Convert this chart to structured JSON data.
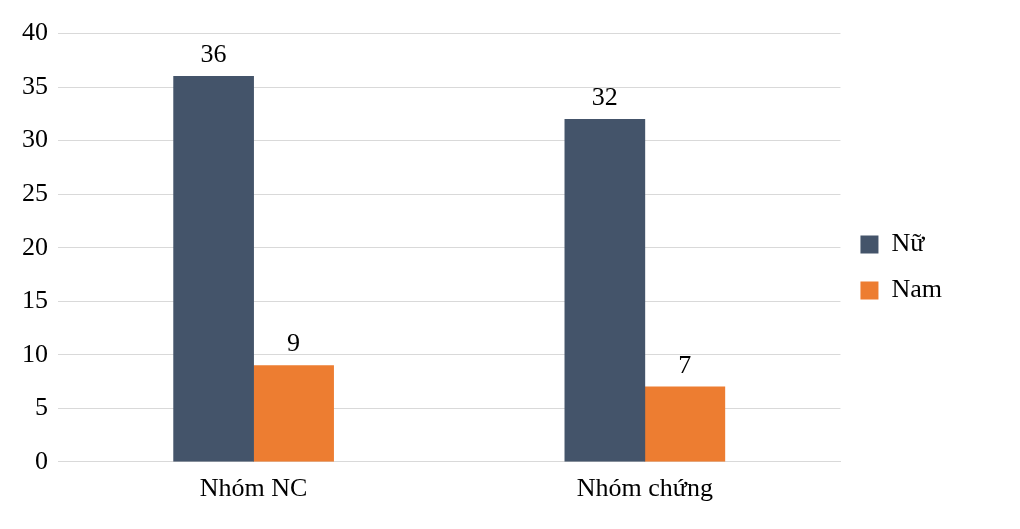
{
  "chart_data": {
    "type": "bar",
    "categories": [
      "Nhóm NC",
      "Nhóm chứng"
    ],
    "series": [
      {
        "name": "Nữ",
        "color": "#44546a",
        "values": [
          36,
          32
        ]
      },
      {
        "name": "Nam",
        "color": "#ed7d31",
        "values": [
          9,
          7
        ]
      }
    ],
    "ylim": [
      0,
      40
    ],
    "yticks": [
      0,
      5,
      10,
      15,
      20,
      25,
      30,
      35,
      40
    ],
    "grid": "y",
    "legend": "right",
    "data_labels": true
  }
}
